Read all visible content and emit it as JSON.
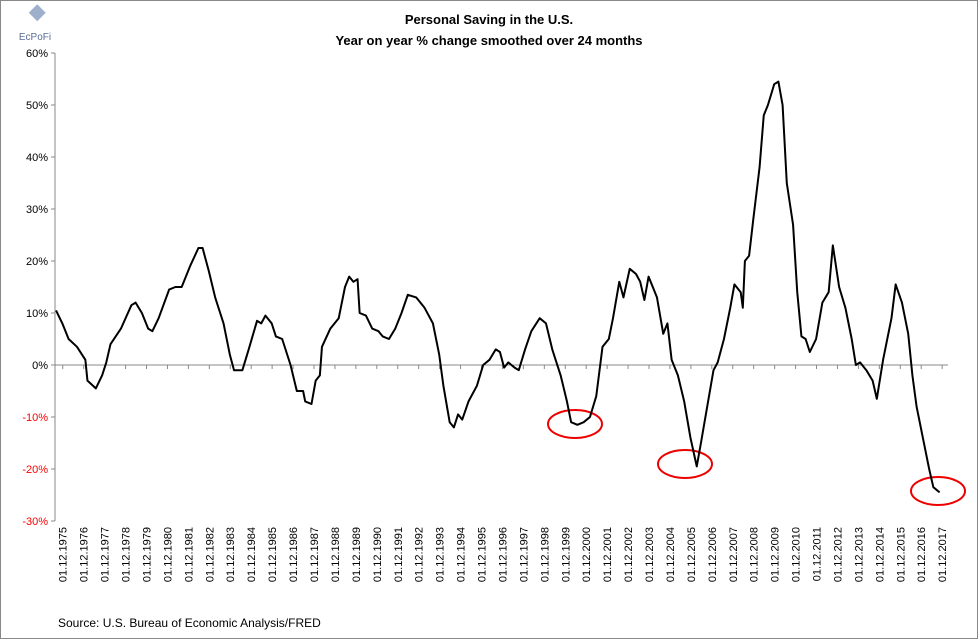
{
  "chart_data": {
    "type": "line",
    "logo_text": "EcPoFi",
    "title": "Personal Saving in the U.S.",
    "subtitle": "Year on year % change smoothed over 24 months",
    "source": "Source: U.S. Bureau of Economic Analysis/FRED",
    "color": "#000000",
    "negative_tick_color": "#ff0000",
    "grid": false,
    "xlim": [
      1975.55,
      2018.2
    ],
    "ylim": [
      -30,
      60
    ],
    "yticks": [
      {
        "value": 60,
        "label": "60%"
      },
      {
        "value": 50,
        "label": "50%"
      },
      {
        "value": 40,
        "label": "40%"
      },
      {
        "value": 30,
        "label": "30%"
      },
      {
        "value": 20,
        "label": "20%"
      },
      {
        "value": 10,
        "label": "10%"
      },
      {
        "value": 0,
        "label": "0%"
      },
      {
        "value": -10,
        "label": "-10%"
      },
      {
        "value": -20,
        "label": "-20%"
      },
      {
        "value": -30,
        "label": "-30%"
      }
    ],
    "xticks": [
      {
        "value": 1975.92,
        "label": "01.12.1975"
      },
      {
        "value": 1976.92,
        "label": "01.12.1976"
      },
      {
        "value": 1977.92,
        "label": "01.12.1977"
      },
      {
        "value": 1978.92,
        "label": "01.12.1978"
      },
      {
        "value": 1979.92,
        "label": "01.12.1979"
      },
      {
        "value": 1980.92,
        "label": "01.12.1980"
      },
      {
        "value": 1981.92,
        "label": "01.12.1981"
      },
      {
        "value": 1982.92,
        "label": "01.12.1982"
      },
      {
        "value": 1983.92,
        "label": "01.12.1983"
      },
      {
        "value": 1984.92,
        "label": "01.12.1984"
      },
      {
        "value": 1985.92,
        "label": "01.12.1985"
      },
      {
        "value": 1986.92,
        "label": "01.12.1986"
      },
      {
        "value": 1987.92,
        "label": "01.12.1987"
      },
      {
        "value": 1988.92,
        "label": "01.12.1988"
      },
      {
        "value": 1989.92,
        "label": "01.12.1989"
      },
      {
        "value": 1990.92,
        "label": "01.12.1990"
      },
      {
        "value": 1991.92,
        "label": "01.12.1991"
      },
      {
        "value": 1992.92,
        "label": "01.12.1992"
      },
      {
        "value": 1993.92,
        "label": "01.12.1993"
      },
      {
        "value": 1994.92,
        "label": "01.12.1994"
      },
      {
        "value": 1995.92,
        "label": "01.12.1995"
      },
      {
        "value": 1996.92,
        "label": "01.12.1996"
      },
      {
        "value": 1997.92,
        "label": "01.12.1997"
      },
      {
        "value": 1998.92,
        "label": "01.12.1998"
      },
      {
        "value": 1999.92,
        "label": "01.12.1999"
      },
      {
        "value": 2000.92,
        "label": "01.12.2000"
      },
      {
        "value": 2001.92,
        "label": "01.12.2001"
      },
      {
        "value": 2002.92,
        "label": "01.12.2002"
      },
      {
        "value": 2003.92,
        "label": "01.12.2003"
      },
      {
        "value": 2004.92,
        "label": "01.12.2004"
      },
      {
        "value": 2005.92,
        "label": "01.12.2005"
      },
      {
        "value": 2006.92,
        "label": "01.12.2006"
      },
      {
        "value": 2007.92,
        "label": "01.12.2007"
      },
      {
        "value": 2008.92,
        "label": "01.12.2008"
      },
      {
        "value": 2009.92,
        "label": "01.12.2009"
      },
      {
        "value": 2010.92,
        "label": "01.12.2010"
      },
      {
        "value": 2011.92,
        "label": "01.12.2011"
      },
      {
        "value": 2012.92,
        "label": "01.12.2012"
      },
      {
        "value": 2013.92,
        "label": "01.12.2013"
      },
      {
        "value": 2014.92,
        "label": "01.12.2014"
      },
      {
        "value": 2015.92,
        "label": "01.12.2015"
      },
      {
        "value": 2016.92,
        "label": "01.12.2016"
      },
      {
        "value": 2017.92,
        "label": "01.12.2017"
      }
    ],
    "x": [
      1975.6,
      1975.9,
      1976.2,
      1976.6,
      1977.0,
      1977.1,
      1977.5,
      1977.8,
      1978.0,
      1978.2,
      1978.7,
      1979.2,
      1979.4,
      1979.7,
      1980.0,
      1980.2,
      1980.5,
      1981.0,
      1981.3,
      1981.6,
      1982.0,
      1982.4,
      1982.6,
      1982.9,
      1983.2,
      1983.6,
      1983.9,
      1984.1,
      1984.5,
      1984.8,
      1985.2,
      1985.4,
      1985.6,
      1985.9,
      1986.1,
      1986.4,
      1986.8,
      1987.1,
      1987.4,
      1987.5,
      1987.8,
      1988.0,
      1988.2,
      1988.3,
      1988.7,
      1989.1,
      1989.4,
      1989.6,
      1989.8,
      1990.0,
      1990.1,
      1990.4,
      1990.7,
      1991.0,
      1991.2,
      1991.5,
      1991.8,
      1992.1,
      1992.4,
      1992.8,
      1993.2,
      1993.6,
      1993.9,
      1994.1,
      1994.4,
      1994.6,
      1994.8,
      1995.0,
      1995.3,
      1995.7,
      1996.0,
      1996.3,
      1996.6,
      1996.8,
      1997.0,
      1997.2,
      1997.5,
      1997.7,
      1998.0,
      1998.3,
      1998.7,
      1999.0,
      1999.3,
      1999.7,
      2000.0,
      2000.2,
      2000.5,
      2000.8,
      2001.1,
      2001.4,
      2001.7,
      2002.0,
      2002.2,
      2002.5,
      2002.7,
      2003.0,
      2003.3,
      2003.5,
      2003.7,
      2003.9,
      2004.3,
      2004.6,
      2004.8,
      2005.0,
      2005.3,
      2005.6,
      2005.9,
      2006.2,
      2006.4,
      2006.7,
      2007.0,
      2007.2,
      2007.5,
      2007.8,
      2008.0,
      2008.3,
      2008.4,
      2008.5,
      2008.7,
      2008.9,
      2009.2,
      2009.4,
      2009.6,
      2009.9,
      2010.1,
      2010.3,
      2010.5,
      2010.8,
      2011.0,
      2011.2,
      2011.4,
      2011.6,
      2011.9,
      2012.2,
      2012.5,
      2012.7,
      2013.0,
      2013.3,
      2013.6,
      2013.8,
      2014.0,
      2014.3,
      2014.6,
      2014.8,
      2015.1,
      2015.5,
      2015.7,
      2016.0,
      2016.3,
      2016.5,
      2016.7,
      2017.0,
      2017.3,
      2017.5,
      2017.8
    ],
    "values": [
      10.5,
      8,
      5,
      3.5,
      1,
      -3,
      -4.5,
      -2,
      0.5,
      4,
      7,
      11.5,
      12,
      10,
      7,
      6.5,
      9,
      14.5,
      15,
      15,
      19,
      22.5,
      22.5,
      18,
      13,
      8,
      2,
      -1,
      -1,
      3,
      8.5,
      8,
      9.5,
      8,
      5.5,
      5,
      0,
      -5,
      -5,
      -7,
      -7.5,
      -3,
      -2,
      3.5,
      7,
      9,
      15,
      17,
      16,
      16.5,
      10,
      9.5,
      7,
      6.5,
      5.5,
      5,
      7,
      10,
      13.5,
      13,
      11,
      8,
      2,
      -4,
      -11,
      -12,
      -9.5,
      -10.5,
      -7,
      -4,
      0,
      1,
      3,
      2.5,
      -0.5,
      0.5,
      -0.5,
      -1,
      3,
      6.5,
      9,
      8,
      3,
      -2,
      -7,
      -11,
      -11.5,
      -11,
      -10,
      -6,
      3.5,
      5,
      9,
      16,
      13,
      18.5,
      17.5,
      16,
      12.5,
      17,
      13,
      6,
      8,
      1,
      -2,
      -7,
      -14,
      -19.5,
      -15,
      -8,
      -1,
      0.5,
      5,
      11,
      15.5,
      14,
      11,
      20,
      21,
      28,
      38,
      48,
      50,
      54,
      54.5,
      50,
      35,
      27,
      14,
      5.5,
      5,
      2.5,
      5,
      12,
      14,
      23,
      15,
      11,
      5,
      0,
      0.5,
      -1,
      -3,
      -6.5,
      1,
      9,
      15.5,
      12,
      6,
      -2,
      -8,
      -14,
      -20,
      -23.5,
      -24.5
    ]
  }
}
